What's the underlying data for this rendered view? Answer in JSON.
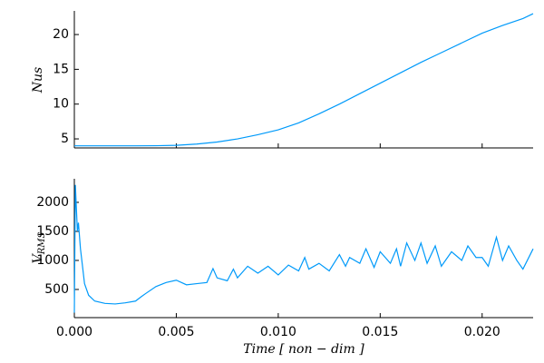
{
  "chart_data": [
    {
      "type": "line",
      "ylabel": "Nus",
      "x": [
        0,
        0.001,
        0.002,
        0.003,
        0.004,
        0.005,
        0.006,
        0.007,
        0.008,
        0.009,
        0.01,
        0.011,
        0.012,
        0.013,
        0.014,
        0.015,
        0.016,
        0.017,
        0.018,
        0.019,
        0.02,
        0.021,
        0.022,
        0.0225
      ],
      "series": [
        {
          "color": "#009afa",
          "values": [
            4.0,
            4.0,
            4.0,
            4.0,
            4.02,
            4.08,
            4.25,
            4.55,
            5.0,
            5.6,
            6.3,
            7.3,
            8.6,
            10.0,
            11.5,
            13.0,
            14.5,
            16.0,
            17.4,
            18.8,
            20.2,
            21.3,
            22.3,
            23.0
          ]
        }
      ],
      "xlim": [
        0,
        0.0225
      ],
      "xticks": [
        0,
        0.005,
        0.01,
        0.015,
        0.02
      ],
      "show_xtick_labels": false,
      "ylim": [
        3.7,
        23.4
      ],
      "yticks": [
        5,
        10,
        15,
        20
      ]
    },
    {
      "type": "line",
      "ylabel": "V",
      "ylabel_subscript": "RMS",
      "xlabel": "Time [ non − dim ]",
      "x": [
        0,
        5e-05,
        0.0001,
        0.00015,
        0.0002,
        0.0003,
        0.0004,
        0.0005,
        0.0007,
        0.001,
        0.0015,
        0.002,
        0.0025,
        0.003,
        0.0033,
        0.0035,
        0.004,
        0.0045,
        0.005,
        0.0055,
        0.006,
        0.0065,
        0.0068,
        0.007,
        0.0075,
        0.0078,
        0.008,
        0.0085,
        0.009,
        0.0095,
        0.01,
        0.0105,
        0.011,
        0.0113,
        0.0115,
        0.012,
        0.0125,
        0.013,
        0.0133,
        0.0135,
        0.014,
        0.0143,
        0.0147,
        0.015,
        0.0155,
        0.0158,
        0.016,
        0.0163,
        0.0167,
        0.017,
        0.0173,
        0.0177,
        0.018,
        0.0185,
        0.019,
        0.0193,
        0.0197,
        0.02,
        0.0203,
        0.0207,
        0.021,
        0.0213,
        0.0217,
        0.022,
        0.0225
      ],
      "series": [
        {
          "color": "#009afa",
          "values": [
            100,
            2300,
            1900,
            1500,
            1650,
            1200,
            900,
            600,
            400,
            300,
            260,
            250,
            270,
            300,
            380,
            430,
            550,
            620,
            660,
            580,
            600,
            620,
            860,
            700,
            650,
            850,
            700,
            900,
            780,
            900,
            750,
            920,
            820,
            1050,
            850,
            950,
            820,
            1100,
            900,
            1050,
            950,
            1200,
            880,
            1150,
            950,
            1200,
            900,
            1300,
            1000,
            1300,
            950,
            1250,
            900,
            1150,
            1000,
            1250,
            1050,
            1050,
            900,
            1400,
            1000,
            1250,
            1000,
            850,
            1200
          ]
        }
      ],
      "xlim": [
        0,
        0.0225
      ],
      "xticks": [
        {
          "value": 0,
          "label": "0.000"
        },
        {
          "value": 0.005,
          "label": "0.005"
        },
        {
          "value": 0.01,
          "label": "0.010"
        },
        {
          "value": 0.015,
          "label": "0.015"
        },
        {
          "value": 0.02,
          "label": "0.020"
        }
      ],
      "show_xtick_labels": true,
      "ylim": [
        15,
        2406
      ],
      "yticks": [
        500,
        1000,
        1500,
        2000
      ]
    }
  ]
}
